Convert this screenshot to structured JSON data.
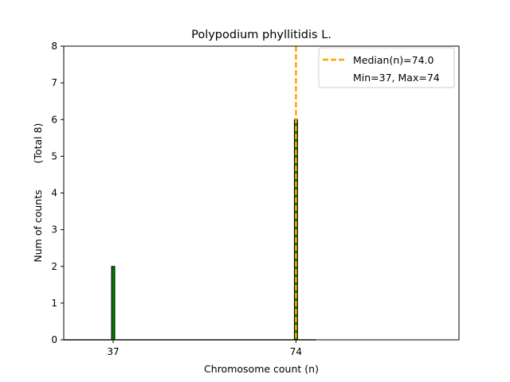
{
  "chart_data": {
    "type": "bar",
    "title": "Polypodium phyllitidis L.",
    "xlabel": "Chromosome count (n)",
    "ylabel": "Num of counts",
    "ylabel_total": "(Total 8)",
    "xlim": [
      27,
      107
    ],
    "ylim": [
      0,
      8
    ],
    "x_ticks": [
      37,
      74
    ],
    "y_ticks": [
      0,
      1,
      2,
      3,
      4,
      5,
      6,
      7,
      8
    ],
    "grid": false,
    "legend_position": "top-right",
    "bars": [
      {
        "x": 37,
        "value": 2
      },
      {
        "x": 74,
        "value": 6
      }
    ],
    "median": 74.0,
    "legend": {
      "median_label": "Median(n)=74.0",
      "range_label": "Min=37, Max=74"
    },
    "colors": {
      "bar_fill": "#008000",
      "bar_edge": "#000000",
      "median_line": "#ffa500",
      "axes": "#000000"
    }
  }
}
